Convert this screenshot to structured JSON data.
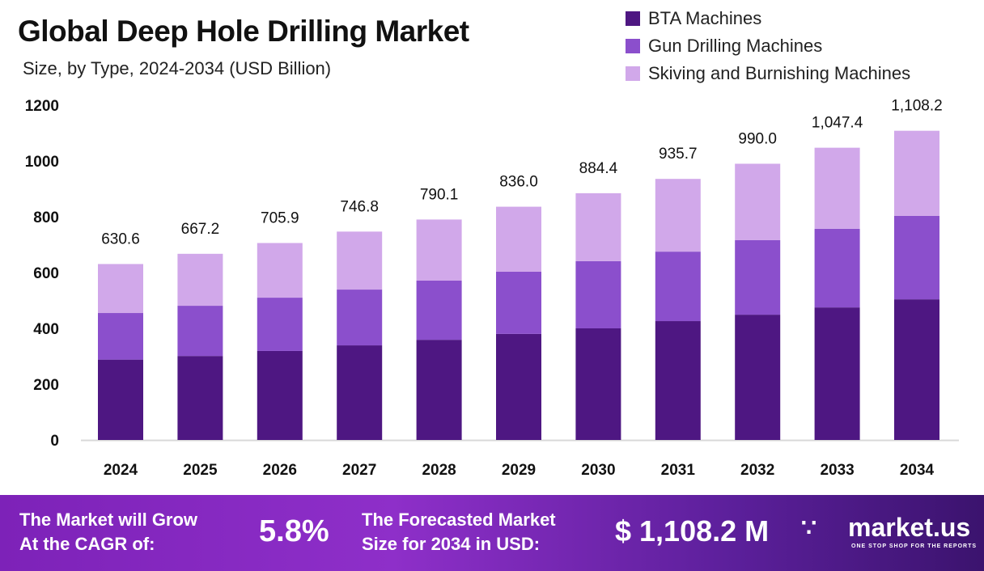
{
  "chart_data": {
    "type": "bar",
    "stacked": true,
    "title": "Global Deep Hole Drilling Market",
    "subtitle": "Size, by Type, 2024-2034 (USD Billion)",
    "categories": [
      "2024",
      "2025",
      "2026",
      "2027",
      "2028",
      "2029",
      "2030",
      "2031",
      "2032",
      "2033",
      "2034"
    ],
    "series": [
      {
        "name": "BTA Machines",
        "color": "#4e1782",
        "values": [
          288,
          301,
          319,
          339,
          359,
          380,
          400,
          426,
          449,
          475,
          504
        ]
      },
      {
        "name": "Gun Drilling Machines",
        "color": "#8b4fcc",
        "values": [
          167,
          180,
          191,
          200,
          212,
          223,
          241,
          249,
          267,
          282,
          299
        ]
      },
      {
        "name": "Skiving and Burnishing Machines",
        "color": "#d1a8ea",
        "values": [
          175.6,
          186.2,
          195.9,
          207.8,
          219.1,
          233,
          243.4,
          260.7,
          274,
          290.4,
          305.2
        ]
      }
    ],
    "totals": [
      "630.6",
      "667.2",
      "705.9",
      "746.8",
      "790.1",
      "836.0",
      "884.4",
      "935.7",
      "990.0",
      "1,047.4",
      "1,108.2"
    ],
    "yticks": [
      "0",
      "200",
      "400",
      "600",
      "800",
      "1000",
      "1200"
    ],
    "ylim": [
      0,
      1200
    ],
    "grid": false,
    "legend": "top-right"
  },
  "banner": {
    "cagr_label": "The Market will Grow At the CAGR of:",
    "cagr_line1": "The Market will Grow",
    "cagr_line2": "At the CAGR of:",
    "cagr_value": "5.8%",
    "forecast_line1": "The Forecasted Market",
    "forecast_line2": "Size for 2034 in USD:",
    "forecast_value": "$ 1,108.2 M",
    "logo_text": "market.us",
    "logo_tagline": "ONE STOP SHOP FOR THE REPORTS"
  }
}
